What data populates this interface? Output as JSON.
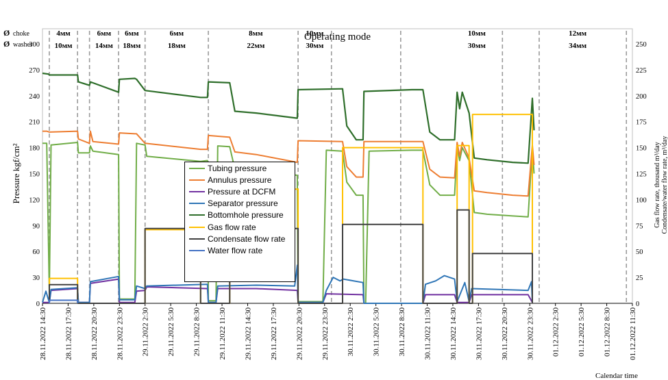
{
  "chart_data": {
    "type": "line",
    "title": "Operating mode",
    "header_labels": {
      "choke_symbol": "Ø",
      "choke_label": "choke",
      "washer_symbol": "Ø",
      "washer_label": "washer"
    },
    "modes": [
      {
        "choke": "4мм",
        "washer": "10мм"
      },
      {
        "choke": "6мм",
        "washer": "14мм"
      },
      {
        "choke": "6мм",
        "washer": "18мм"
      },
      {
        "choke": "6мм",
        "washer": "18мм"
      },
      {
        "choke": "8мм",
        "washer": "22мм"
      },
      {
        "choke": "10мм",
        "washer": "30мм"
      },
      {
        "choke": "10мм",
        "washer": "30мм"
      },
      {
        "choke": "12мм",
        "washer": "34мм"
      }
    ],
    "ylabel_left": "Pressure kgf/cm²",
    "ylabel_right_1": "Gas flow rate, thousand m³/day",
    "ylabel_right_2": "Condensate/water flow rate, m³/day",
    "xlabel": "Calendar time",
    "ylim_left": [
      0,
      300
    ],
    "ylim_right": [
      0,
      250
    ],
    "yticks_left": [
      "0",
      "30",
      "60",
      "90",
      "120",
      "150",
      "180",
      "210",
      "240",
      "270",
      "300"
    ],
    "yticks_right": [
      "0",
      "25",
      "50",
      "75",
      "100",
      "125",
      "150",
      "175",
      "200",
      "225",
      "250"
    ],
    "x_ticks": [
      "28.11.2022 14:30",
      "28.11.2022 17:30",
      "28.11.2022 20:30",
      "28.11.2022 23:30",
      "29.11.2022 2:30",
      "29.11.2022 5:30",
      "29.11.2022 8:30",
      "29.11.2022 11:30",
      "29.11.2022 14:30",
      "29.11.2022 17:30",
      "29.11.2022 20:30",
      "29.11.2022 23:30",
      "30.11.2022 2:30",
      "30.11.2022 5:30",
      "30.11.2022 8:30",
      "30.11.2022 11:30",
      "30.11.2022 14:30",
      "30.11.2022 17:30",
      "30.11.2022 20:30",
      "30.11.2022 23:30",
      "01.12.2022 2:30",
      "01.12.2022 5:30",
      "01.12.2022 8:30",
      "01.12.2022 11:30"
    ],
    "x_range_hours": [
      0,
      69
    ],
    "mode_change_hours": [
      0.8,
      4.1,
      5.5,
      8.9,
      12,
      19.4,
      29.9,
      33.8,
      41.9,
      53.8,
      58.1,
      68.3
    ],
    "legend_placement": "center-left",
    "grid": false,
    "series": [
      {
        "name": "Tubing pressure",
        "axis": "left",
        "color": "#70ad47",
        "points": [
          [
            0,
            185
          ],
          [
            0.5,
            185
          ],
          [
            0.8,
            12
          ],
          [
            1.0,
            183
          ],
          [
            4.1,
            186
          ],
          [
            4.2,
            174
          ],
          [
            5.5,
            174
          ],
          [
            5.6,
            182
          ],
          [
            5.9,
            176
          ],
          [
            8.9,
            172
          ],
          [
            9,
            5
          ],
          [
            10.8,
            5
          ],
          [
            11,
            185
          ],
          [
            12,
            183
          ],
          [
            12.2,
            170
          ],
          [
            18.5,
            164
          ],
          [
            19.3,
            165
          ],
          [
            19.4,
            3
          ],
          [
            20.3,
            3
          ],
          [
            20.5,
            182
          ],
          [
            21.9,
            181
          ],
          [
            22.5,
            155
          ],
          [
            25,
            153
          ],
          [
            29.8,
            148
          ],
          [
            29.9,
            2
          ],
          [
            32.8,
            2
          ],
          [
            33.2,
            177
          ],
          [
            35.1,
            176
          ],
          [
            35.6,
            140
          ],
          [
            36.7,
            125
          ],
          [
            37.5,
            125
          ],
          [
            37.6,
            0
          ],
          [
            37.8,
            0
          ],
          [
            38.2,
            176
          ],
          [
            43.2,
            177
          ],
          [
            44.5,
            177
          ],
          [
            45.3,
            137
          ],
          [
            46.5,
            125
          ],
          [
            48.2,
            125
          ],
          [
            48.5,
            180
          ],
          [
            48.8,
            165
          ],
          [
            49.1,
            180
          ],
          [
            49.9,
            165
          ],
          [
            50.5,
            105
          ],
          [
            52,
            103
          ],
          [
            55,
            101
          ],
          [
            56.8,
            100
          ],
          [
            57.3,
            180
          ],
          [
            57.5,
            150
          ]
        ]
      },
      {
        "name": "Annulus pressure",
        "axis": "left",
        "color": "#ed7d31",
        "points": [
          [
            0,
            199
          ],
          [
            0.5,
            199
          ],
          [
            0.8,
            198
          ],
          [
            4.1,
            199
          ],
          [
            4.2,
            190
          ],
          [
            5.5,
            185
          ],
          [
            5.6,
            199
          ],
          [
            5.9,
            187
          ],
          [
            8.9,
            184
          ],
          [
            9,
            197
          ],
          [
            10.8,
            196
          ],
          [
            11,
            196
          ],
          [
            12,
            185
          ],
          [
            18.5,
            178
          ],
          [
            19.3,
            178
          ],
          [
            19.4,
            194
          ],
          [
            21.9,
            192
          ],
          [
            22.5,
            175
          ],
          [
            25,
            172
          ],
          [
            29.8,
            163
          ],
          [
            29.9,
            188
          ],
          [
            35.1,
            187
          ],
          [
            35.6,
            158
          ],
          [
            36.7,
            146
          ],
          [
            37.5,
            146
          ],
          [
            37.6,
            187
          ],
          [
            43.2,
            187
          ],
          [
            44.5,
            187
          ],
          [
            45.3,
            155
          ],
          [
            46.5,
            146
          ],
          [
            48.2,
            145
          ],
          [
            48.5,
            186
          ],
          [
            48.8,
            170
          ],
          [
            49.1,
            186
          ],
          [
            49.9,
            168
          ],
          [
            50.5,
            130
          ],
          [
            52,
            128
          ],
          [
            55,
            125
          ],
          [
            56.8,
            124
          ],
          [
            57.3,
            183
          ],
          [
            57.5,
            160
          ]
        ]
      },
      {
        "name": "Pressure at DCFM",
        "axis": "left",
        "color": "#7030a0",
        "points": [
          [
            0,
            1
          ],
          [
            0.8,
            1
          ],
          [
            1,
            15
          ],
          [
            4.1,
            17
          ],
          [
            4.2,
            1
          ],
          [
            5.5,
            1
          ],
          [
            5.6,
            23
          ],
          [
            8.9,
            28
          ],
          [
            9,
            1
          ],
          [
            10.8,
            1
          ],
          [
            11,
            14
          ],
          [
            12,
            15
          ],
          [
            12.2,
            19
          ],
          [
            19.3,
            17
          ],
          [
            19.4,
            1
          ],
          [
            20.3,
            1
          ],
          [
            20.5,
            17
          ],
          [
            25,
            17
          ],
          [
            29.8,
            15
          ],
          [
            29.9,
            1
          ],
          [
            32.8,
            1
          ],
          [
            33.2,
            11
          ],
          [
            37.5,
            10
          ],
          [
            37.6,
            0
          ],
          [
            44.5,
            0
          ],
          [
            44.8,
            10
          ],
          [
            48.2,
            10
          ],
          [
            48.5,
            1
          ],
          [
            49.9,
            1
          ],
          [
            50.2,
            10
          ],
          [
            56.8,
            10
          ],
          [
            57.3,
            1
          ]
        ]
      },
      {
        "name": "Separator pressure",
        "axis": "left",
        "color": "#2e75b6",
        "points": [
          [
            0,
            1
          ],
          [
            0.4,
            14
          ],
          [
            0.8,
            1
          ],
          [
            1,
            16
          ],
          [
            4.1,
            18
          ],
          [
            4.2,
            1
          ],
          [
            5.5,
            1
          ],
          [
            5.6,
            25
          ],
          [
            8.9,
            31
          ],
          [
            9,
            4
          ],
          [
            10.8,
            4
          ],
          [
            11,
            20
          ],
          [
            12,
            17
          ],
          [
            12.2,
            20
          ],
          [
            19.3,
            22
          ],
          [
            19.4,
            1
          ],
          [
            20.3,
            1
          ],
          [
            20.5,
            20
          ],
          [
            25,
            21
          ],
          [
            29.5,
            20
          ],
          [
            29.8,
            44
          ],
          [
            29.9,
            1
          ],
          [
            32.8,
            1
          ],
          [
            33.2,
            15
          ],
          [
            34,
            30
          ],
          [
            34.8,
            26
          ],
          [
            35.2,
            28
          ],
          [
            37.5,
            24
          ],
          [
            37.6,
            0
          ],
          [
            44.5,
            0
          ],
          [
            44.8,
            22
          ],
          [
            46,
            26
          ],
          [
            47,
            32
          ],
          [
            48.2,
            28
          ],
          [
            48.5,
            2
          ],
          [
            49.4,
            24
          ],
          [
            49.9,
            2
          ],
          [
            50.2,
            17
          ],
          [
            56.8,
            15
          ],
          [
            57.2,
            25
          ],
          [
            57.3,
            1
          ]
        ]
      },
      {
        "name": "Bottomhole pressure",
        "axis": "left",
        "color": "#2e6e2a",
        "points": [
          [
            0,
            266
          ],
          [
            0.7,
            265
          ],
          [
            0.8,
            264
          ],
          [
            4.1,
            264
          ],
          [
            4.2,
            256
          ],
          [
            5.5,
            252
          ],
          [
            5.6,
            256
          ],
          [
            8.9,
            244
          ],
          [
            9,
            259
          ],
          [
            10.8,
            260
          ],
          [
            11,
            259
          ],
          [
            12,
            246
          ],
          [
            18.5,
            238
          ],
          [
            19.3,
            238
          ],
          [
            19.4,
            256
          ],
          [
            21.9,
            255
          ],
          [
            22.5,
            222
          ],
          [
            25,
            220
          ],
          [
            29.8,
            214
          ],
          [
            29.9,
            247
          ],
          [
            35.1,
            248
          ],
          [
            35.6,
            205
          ],
          [
            36.7,
            189
          ],
          [
            37.5,
            189
          ],
          [
            37.6,
            245
          ],
          [
            43.2,
            247
          ],
          [
            44.5,
            247
          ],
          [
            45.3,
            198
          ],
          [
            46.5,
            189
          ],
          [
            48.2,
            189
          ],
          [
            48.5,
            244
          ],
          [
            48.8,
            225
          ],
          [
            49.1,
            244
          ],
          [
            49.9,
            220
          ],
          [
            50.5,
            168
          ],
          [
            52,
            166
          ],
          [
            55,
            163
          ],
          [
            56.8,
            162
          ],
          [
            57.3,
            237
          ],
          [
            57.5,
            200
          ]
        ]
      },
      {
        "name": "Gas flow rate",
        "axis": "right",
        "color": "#ffc000",
        "points": [
          [
            0.8,
            0
          ],
          [
            0.8,
            24
          ],
          [
            4.1,
            24
          ],
          [
            4.1,
            0
          ],
          [
            12,
            0
          ],
          [
            12,
            71
          ],
          [
            18.5,
            71
          ],
          [
            18.5,
            0
          ],
          [
            21.9,
            0
          ],
          [
            21.9,
            110
          ],
          [
            29.9,
            110
          ],
          [
            29.9,
            0
          ],
          [
            35.1,
            0
          ],
          [
            35.1,
            150
          ],
          [
            44.5,
            150
          ],
          [
            44.5,
            0
          ],
          [
            48.5,
            0
          ],
          [
            48.5,
            152
          ],
          [
            49.9,
            152
          ],
          [
            49.9,
            0
          ],
          [
            50.3,
            0
          ],
          [
            50.3,
            182
          ],
          [
            57.3,
            182
          ],
          [
            57.3,
            0
          ]
        ]
      },
      {
        "name": "Condensate flow rate",
        "axis": "right",
        "color": "#404040",
        "points": [
          [
            0.8,
            0
          ],
          [
            0.8,
            18
          ],
          [
            4.1,
            18
          ],
          [
            4.1,
            0
          ],
          [
            12,
            0
          ],
          [
            12,
            72
          ],
          [
            18.5,
            72
          ],
          [
            18.5,
            0
          ],
          [
            21.9,
            0
          ],
          [
            21.9,
            72
          ],
          [
            29.9,
            72
          ],
          [
            29.9,
            0
          ],
          [
            35.1,
            0
          ],
          [
            35.1,
            76
          ],
          [
            44.5,
            76
          ],
          [
            44.5,
            0
          ],
          [
            48.5,
            0
          ],
          [
            48.5,
            90
          ],
          [
            49.9,
            90
          ],
          [
            49.9,
            0
          ],
          [
            50.3,
            0
          ],
          [
            50.3,
            48
          ],
          [
            57.3,
            48
          ],
          [
            57.3,
            0
          ]
        ]
      },
      {
        "name": "Water flow rate",
        "axis": "right",
        "color": "#4472c4",
        "points": [
          [
            0.8,
            0
          ],
          [
            0.8,
            3
          ],
          [
            4.1,
            3
          ],
          [
            4.1,
            0
          ]
        ]
      }
    ]
  }
}
